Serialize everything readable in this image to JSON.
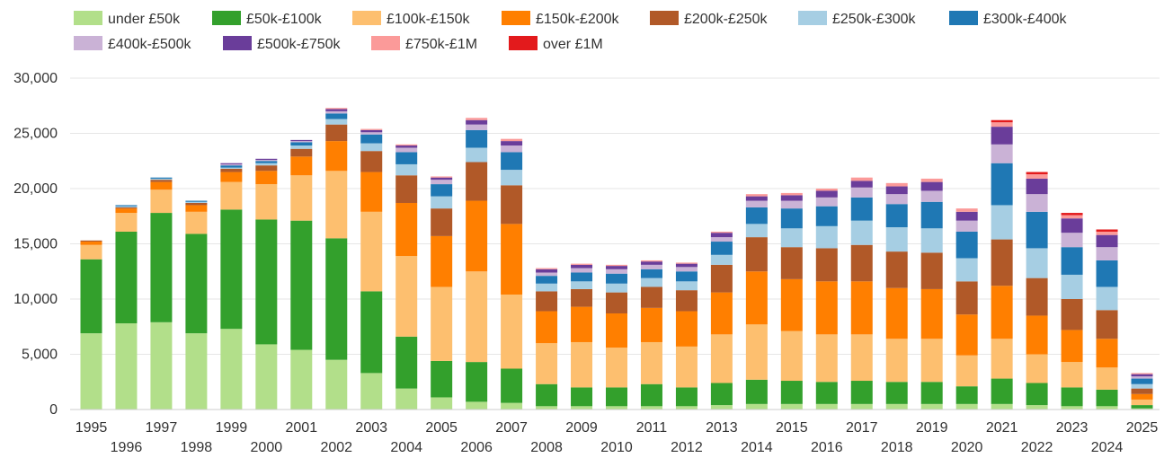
{
  "chart_data": {
    "type": "bar",
    "stacked": true,
    "title": "",
    "xlabel": "",
    "ylabel": "",
    "ylim": [
      0,
      30000
    ],
    "yticks": [
      "0",
      "5,000",
      "10,000",
      "15,000",
      "20,000",
      "25,000",
      "30,000"
    ],
    "yticks_values": [
      0,
      5000,
      10000,
      15000,
      20000,
      25000,
      30000
    ],
    "grid": true,
    "legend_position": "top",
    "categories": [
      "1995",
      "1996",
      "1997",
      "1998",
      "1999",
      "2000",
      "2001",
      "2002",
      "2003",
      "2004",
      "2005",
      "2006",
      "2007",
      "2008",
      "2009",
      "2010",
      "2011",
      "2012",
      "2013",
      "2014",
      "2015",
      "2016",
      "2017",
      "2018",
      "2019",
      "2020",
      "2021",
      "2022",
      "2023",
      "2024",
      "2025"
    ],
    "series": [
      {
        "name": "under £50k",
        "color": "#b2df8a",
        "values": [
          6900,
          7800,
          7900,
          6900,
          7300,
          5900,
          5400,
          4500,
          3300,
          1900,
          1100,
          700,
          600,
          300,
          300,
          300,
          300,
          300,
          400,
          500,
          500,
          500,
          500,
          500,
          500,
          500,
          500,
          400,
          300,
          300,
          100
        ]
      },
      {
        "name": "£50k-£100k",
        "color": "#33a02c",
        "values": [
          6700,
          8300,
          9900,
          9000,
          10800,
          11300,
          11700,
          11000,
          7400,
          4700,
          3300,
          3600,
          3100,
          2000,
          1700,
          1700,
          2000,
          1700,
          2000,
          2200,
          2100,
          2000,
          2100,
          2000,
          2000,
          1600,
          2300,
          2000,
          1700,
          1500,
          300
        ]
      },
      {
        "name": "£100k-£150k",
        "color": "#fdbf6f",
        "values": [
          1300,
          1700,
          2100,
          2000,
          2500,
          3200,
          4100,
          6100,
          7200,
          7300,
          6700,
          8200,
          6700,
          3700,
          4100,
          3600,
          3800,
          3700,
          4400,
          5000,
          4500,
          4300,
          4200,
          3900,
          3900,
          2800,
          3600,
          2600,
          2300,
          2000,
          500
        ]
      },
      {
        "name": "£150k-£200k",
        "color": "#ff7f00",
        "values": [
          300,
          400,
          700,
          600,
          900,
          1200,
          1700,
          2700,
          3600,
          4800,
          4600,
          6400,
          6400,
          2900,
          3200,
          3100,
          3100,
          3200,
          3800,
          4800,
          4700,
          4800,
          4800,
          4600,
          4500,
          3700,
          4800,
          3500,
          2900,
          2600,
          500
        ]
      },
      {
        "name": "£200k-£250k",
        "color": "#b15928",
        "values": [
          100,
          100,
          200,
          200,
          300,
          500,
          700,
          1500,
          1900,
          2500,
          2500,
          3500,
          3500,
          1800,
          1600,
          1900,
          1900,
          1900,
          2500,
          3100,
          2900,
          3000,
          3300,
          3300,
          3300,
          3000,
          4200,
          3400,
          2800,
          2600,
          500
        ]
      },
      {
        "name": "£250k-£300k",
        "color": "#a6cee3",
        "values": [
          0,
          100,
          100,
          100,
          100,
          200,
          300,
          500,
          700,
          1000,
          1100,
          1300,
          1400,
          700,
          700,
          800,
          800,
          800,
          900,
          1200,
          1700,
          2000,
          2200,
          2200,
          2200,
          2100,
          3100,
          2700,
          2200,
          2100,
          400
        ]
      },
      {
        "name": "£300k-£400k",
        "color": "#1f78b4",
        "values": [
          0,
          100,
          100,
          100,
          200,
          200,
          300,
          500,
          800,
          1100,
          1100,
          1600,
          1600,
          700,
          800,
          900,
          800,
          900,
          1200,
          1500,
          1800,
          1800,
          2100,
          2100,
          2400,
          2400,
          3800,
          3300,
          2500,
          2400,
          500
        ]
      },
      {
        "name": "£400k-£500k",
        "color": "#cab2d6",
        "values": [
          0,
          0,
          0,
          0,
          100,
          100,
          100,
          200,
          200,
          400,
          400,
          500,
          600,
          300,
          400,
          400,
          400,
          400,
          400,
          600,
          700,
          800,
          900,
          900,
          1000,
          1000,
          1700,
          1600,
          1300,
          1200,
          200
        ]
      },
      {
        "name": "£500k-£750k",
        "color": "#6a3d9a",
        "values": [
          0,
          0,
          0,
          0,
          100,
          100,
          100,
          200,
          200,
          200,
          200,
          400,
          400,
          300,
          300,
          300,
          300,
          300,
          400,
          400,
          500,
          600,
          600,
          700,
          800,
          800,
          1600,
          1400,
          1300,
          1100,
          200
        ]
      },
      {
        "name": "£750k-£1M",
        "color": "#fb9a99",
        "values": [
          0,
          0,
          0,
          0,
          0,
          0,
          0,
          100,
          100,
          100,
          100,
          200,
          200,
          100,
          100,
          100,
          100,
          100,
          100,
          200,
          200,
          200,
          300,
          300,
          300,
          300,
          400,
          400,
          300,
          300,
          100
        ]
      },
      {
        "name": "over £1M",
        "color": "#e31a1c",
        "values": [
          0,
          0,
          0,
          0,
          0,
          0,
          0,
          0,
          0,
          0,
          0,
          0,
          0,
          0,
          0,
          0,
          0,
          0,
          0,
          0,
          0,
          0,
          0,
          0,
          0,
          0,
          200,
          200,
          200,
          200,
          0
        ]
      }
    ]
  },
  "colors": {
    "grid": "#e6e6e6",
    "axis": "#cccccc",
    "text": "#333333"
  }
}
